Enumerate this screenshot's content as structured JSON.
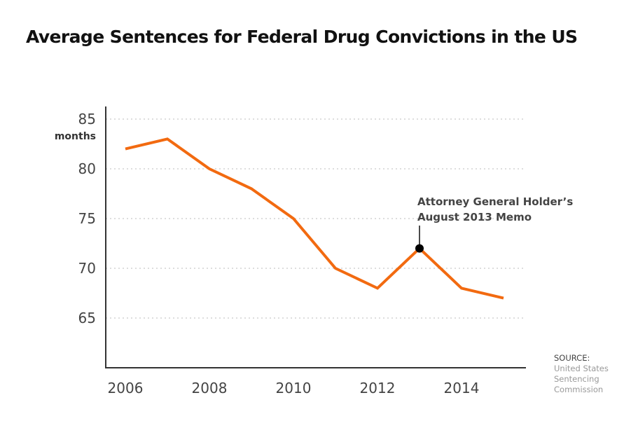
{
  "chart_data": {
    "type": "line",
    "title": "Average Sentences for Federal Drug Convictions in the US",
    "ylabel": "months",
    "xlabel": "",
    "x": [
      2006,
      2007,
      2008,
      2009,
      2010,
      2011,
      2012,
      2013,
      2014,
      2015
    ],
    "values": [
      82,
      83,
      80,
      78,
      75,
      70,
      68,
      72,
      68,
      67
    ],
    "ylim": [
      60,
      85
    ],
    "xlim": [
      2006,
      2015
    ],
    "yticks": [
      85,
      80,
      75,
      70,
      65
    ],
    "xticks": [
      2006,
      2008,
      2010,
      2012,
      2014
    ],
    "grid": "horizontal dotted",
    "line_color": "#f26a10",
    "annotation": {
      "x": 2013,
      "y": 72,
      "lines": [
        "Attorney General Holder’s",
        "August 2013 Memo"
      ]
    },
    "source": {
      "label": "SOURCE:",
      "lines": [
        "United States",
        "Sentencing",
        "Commission"
      ]
    }
  }
}
